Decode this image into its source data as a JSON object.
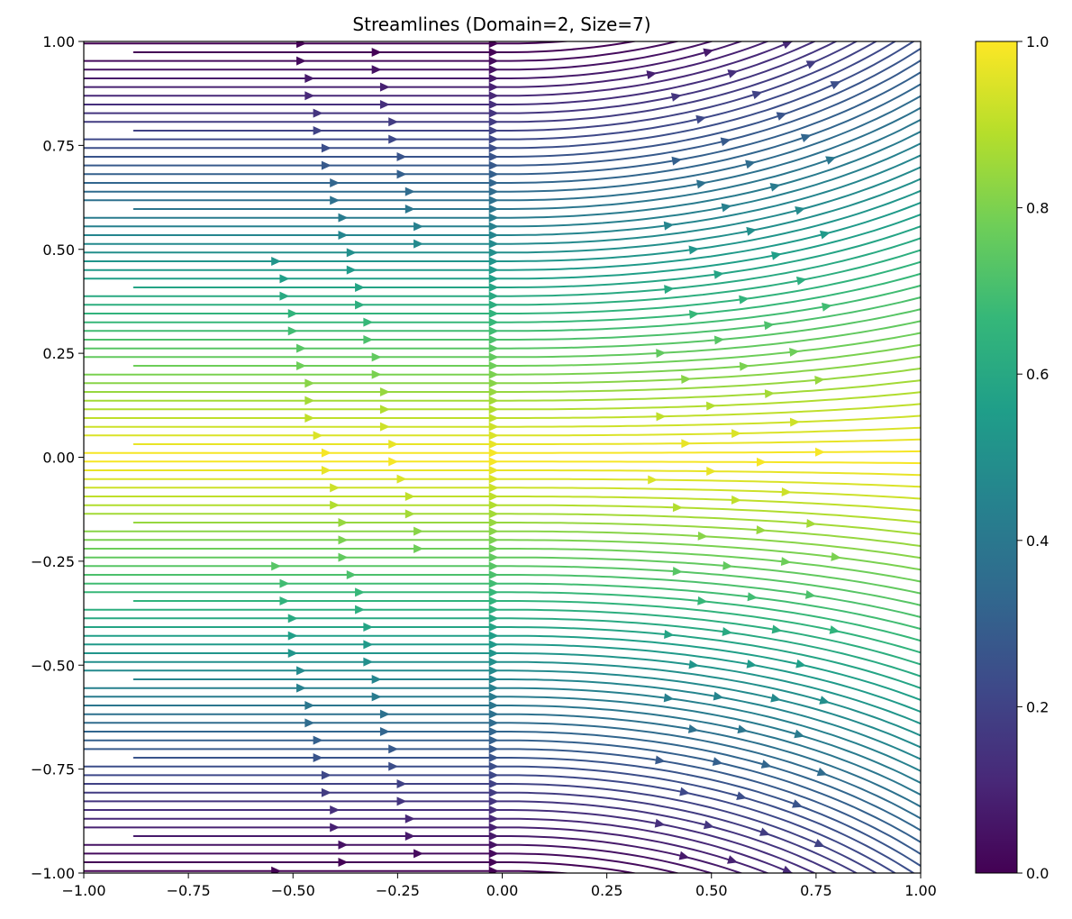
{
  "chart_data": {
    "type": "streamplot",
    "title": "Streamlines (Domain=2, Size=7)",
    "xlabel": "",
    "ylabel": "",
    "xlim": [
      -1.0,
      1.0
    ],
    "ylim": [
      -1.0,
      1.0
    ],
    "x_ticks": [
      -1.0,
      -0.75,
      -0.5,
      -0.25,
      0.0,
      0.25,
      0.5,
      0.75,
      1.0
    ],
    "x_tick_labels": [
      "−1.00",
      "−0.75",
      "−0.50",
      "−0.25",
      "0.00",
      "0.25",
      "0.50",
      "0.75",
      "1.00"
    ],
    "y_ticks": [
      -1.0,
      -0.75,
      -0.5,
      -0.25,
      0.0,
      0.25,
      0.5,
      0.75,
      1.0
    ],
    "y_tick_labels": [
      "−1.00",
      "−0.75",
      "−0.50",
      "−0.25",
      "0.00",
      "0.25",
      "0.50",
      "0.75",
      "1.00"
    ],
    "grid": false,
    "flow_direction": "left-to-right",
    "colormap": "viridis",
    "colorbar": {
      "range": [
        0.0,
        1.0
      ],
      "ticks": [
        0.0,
        0.2,
        0.4,
        0.6,
        0.8,
        1.0
      ],
      "tick_labels": [
        "0.0",
        "0.2",
        "0.4",
        "0.6",
        "0.8",
        "1.0"
      ],
      "stops": [
        "#440154",
        "#482878",
        "#3e4989",
        "#31688e",
        "#26828e",
        "#1f9e89",
        "#35b779",
        "#6ece58",
        "#b5de2b",
        "#fde725"
      ]
    }
  }
}
